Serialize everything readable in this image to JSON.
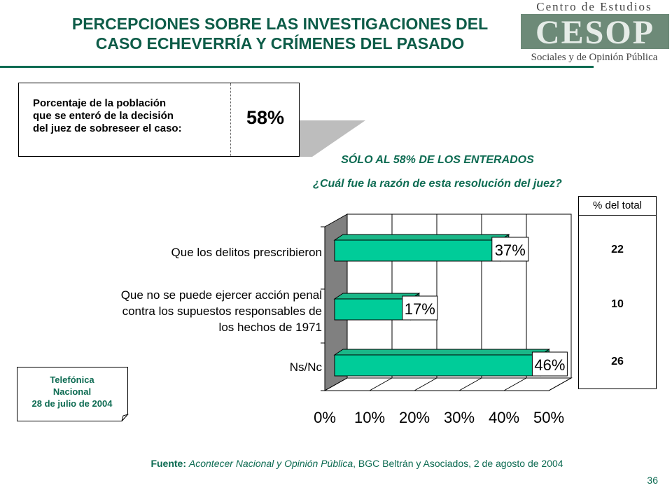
{
  "slide": {
    "title_line1": "PERCEPCIONES SOBRE LAS INVESTIGACIONES DEL",
    "title_line2": "CASO ECHEVERRÍA Y CRÍMENES DEL PASADO",
    "page_number": "36"
  },
  "logo": {
    "top_text": "Centro de Estudios",
    "mark_text": "CESOP",
    "bottom_text": "Sociales y de Opinión Pública"
  },
  "stat": {
    "label_lines": [
      "Porcentaje de la población",
      "que se enteró de la decisión",
      "del juez de sobreseer el caso:"
    ],
    "value": "58%"
  },
  "question": {
    "filter": "SÓLO AL 58% DE LOS ENTERADOS",
    "text": "¿Cuál fue la razón de esta resolución del juez?"
  },
  "totals": {
    "header": "% del total",
    "values": [
      "22",
      "10",
      "26"
    ]
  },
  "note": {
    "lines": [
      "Telefónica",
      "Nacional",
      "28 de julio de 2004"
    ]
  },
  "source": {
    "prefix": "Fuente:",
    "publication": "Acontecer Nacional y Opinión Pública",
    "rest": ", BGC Beltrán y Asociados, 2 de agosto de 2004"
  },
  "colors": {
    "bar_front": "#00cc99",
    "bar_top": "#1ab788",
    "accent": "#0d6b52",
    "wall": "#808080"
  },
  "chart_data": {
    "type": "bar",
    "orientation": "horizontal",
    "categories": [
      [
        "Que los delitos prescribieron"
      ],
      [
        "Que no se puede ejercer acción penal",
        "contra los supuestos responsables de",
        "los hechos de 1971"
      ],
      [
        "Ns/Nc"
      ]
    ],
    "values": [
      37,
      17,
      46
    ],
    "value_labels": [
      "37%",
      "17%",
      "46%"
    ],
    "xlim": [
      0,
      50
    ],
    "xticks": [
      "0%",
      "10%",
      "20%",
      "30%",
      "40%",
      "50%"
    ],
    "grid": true
  }
}
